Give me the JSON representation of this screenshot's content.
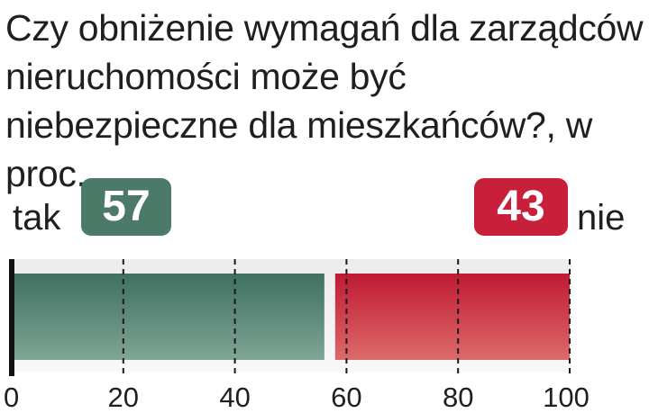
{
  "title": "Czy obniżenie wymagań dla zarządców nieruchomości może być niebezpieczne dla mieszkańców?, w proc.",
  "chart_data": {
    "type": "bar",
    "orientation": "horizontal-stacked",
    "categories": [
      "tak",
      "nie"
    ],
    "series": [
      {
        "name": "tak",
        "value": 57,
        "label": "57"
      },
      {
        "name": "nie",
        "value": 43,
        "label": "43"
      }
    ],
    "xlim": [
      0,
      100
    ],
    "xticks": [
      "0",
      "20",
      "40",
      "60",
      "80",
      "100"
    ],
    "grid": "dashed vertical",
    "colors": {
      "tak": "#4b7a68",
      "nie": "#c8203a"
    }
  }
}
